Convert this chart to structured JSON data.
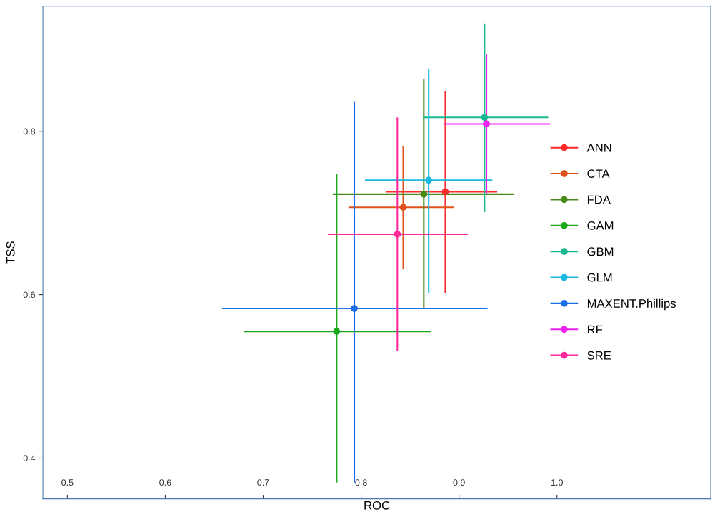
{
  "chart_data": {
    "type": "scatter",
    "xlabel": "ROC",
    "ylabel": "TSS",
    "xlim": [
      0.475,
      1.157
    ],
    "ylim": [
      0.35,
      0.953
    ],
    "xticks": [
      0.5,
      0.6,
      0.7,
      0.8,
      0.9,
      {
        "value": 1.0,
        "label": "1.0"
      }
    ],
    "yticks": [
      0.4,
      0.6,
      0.8
    ],
    "grid": false,
    "legend": "right",
    "marker": "circle",
    "line_style": "solid",
    "series": [
      {
        "name": "ANN",
        "color": "#ff2a2a",
        "x": [
          0.886
        ],
        "values": [
          0.726
        ],
        "xerrors": [
          [
            0.825,
            0.939
          ]
        ],
        "errors": [
          [
            0.602,
            0.849
          ]
        ]
      },
      {
        "name": "CTA",
        "color": "#e0521b",
        "x": [
          0.843
        ],
        "values": [
          0.707
        ],
        "xerrors": [
          [
            0.787,
            0.895
          ]
        ],
        "errors": [
          [
            0.631,
            0.782
          ]
        ]
      },
      {
        "name": "FDA",
        "color": "#4a8a1a",
        "x": [
          0.864
        ],
        "values": [
          0.723
        ],
        "xerrors": [
          [
            0.771,
            0.956
          ]
        ],
        "errors": [
          [
            0.583,
            0.864
          ]
        ]
      },
      {
        "name": "GAM",
        "color": "#1aa81a",
        "x": [
          0.775
        ],
        "values": [
          0.555
        ],
        "xerrors": [
          [
            0.68,
            0.871
          ]
        ],
        "errors": [
          [
            0.37,
            0.748
          ]
        ]
      },
      {
        "name": "GBM",
        "color": "#18b890",
        "x": [
          0.926
        ],
        "values": [
          0.817
        ],
        "xerrors": [
          [
            0.863,
            0.991
          ]
        ],
        "errors": [
          [
            0.701,
            0.932
          ]
        ]
      },
      {
        "name": "GLM",
        "color": "#19b8e0",
        "x": [
          0.869
        ],
        "values": [
          0.74
        ],
        "xerrors": [
          [
            0.804,
            0.934
          ]
        ],
        "errors": [
          [
            0.602,
            0.876
          ]
        ]
      },
      {
        "name": "MAXENT.Phillips",
        "color": "#1e6fe8",
        "x": [
          0.793
        ],
        "values": [
          0.583
        ],
        "xerrors": [
          [
            0.658,
            0.929
          ]
        ],
        "errors": [
          [
            0.37,
            0.836
          ]
        ]
      },
      {
        "name": "RF",
        "color": "#ee22ee",
        "x": [
          0.928
        ],
        "values": [
          0.809
        ],
        "xerrors": [
          [
            0.884,
            0.993
          ]
        ],
        "errors": [
          [
            0.724,
            0.894
          ]
        ]
      },
      {
        "name": "SRE",
        "color": "#ff2a9a",
        "x": [
          0.837
        ],
        "values": [
          0.674
        ],
        "xerrors": [
          [
            0.766,
            0.909
          ]
        ],
        "errors": [
          [
            0.531,
            0.817
          ]
        ]
      }
    ]
  }
}
